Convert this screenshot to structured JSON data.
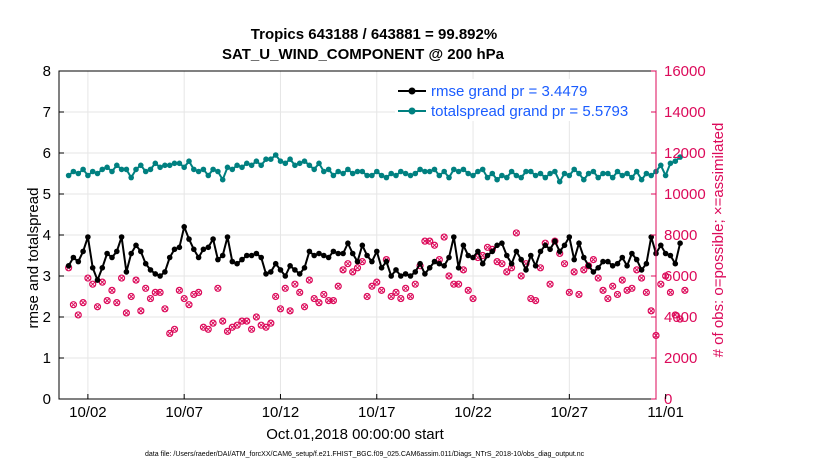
{
  "chart_data": {
    "type": "line",
    "title_line1": "Tropics 643188 / 643881 = 99.892%",
    "title_line2": "SAT_U_WIND_COMPONENT @ 200 hPa",
    "xlabel": "Oct.01,2018 00:00:00 start",
    "ylabel_left": "rmse and totalspread",
    "ylabel_right": "# of obs: o=possible; ×=assimilated",
    "footnote": "data file: /Users/raeder/DAI/ATM_forcXX/CAM6_setup/f.e21.FHIST_BGC.f09_025.CAM6assim.011/Diags_NTrS_2018-10/obs_diag_output.nc",
    "xlim": [
      0.5,
      31.5
    ],
    "ylim_left": [
      0,
      8
    ],
    "ylim_right": [
      0,
      16000
    ],
    "x_ticks": [
      2,
      7,
      12,
      17,
      22,
      27,
      32
    ],
    "x_tick_labels": [
      "10/02",
      "10/07",
      "10/12",
      "10/17",
      "10/22",
      "10/27",
      "11/01"
    ],
    "y_ticks_left": [
      "0",
      "1",
      "2",
      "3",
      "4",
      "5",
      "6",
      "7",
      "8"
    ],
    "y_ticks_right": [
      "0",
      "2000",
      "4000",
      "6000",
      "8000",
      "10000",
      "12000",
      "14000",
      "16000"
    ],
    "x_step_days": 0.25,
    "series": [
      {
        "name": "rmse grand pr = 3.4479",
        "color": "#000000",
        "axis": "left",
        "values": [
          3.25,
          3.45,
          3.35,
          3.6,
          3.95,
          3.2,
          2.9,
          3.2,
          3.55,
          3.45,
          3.6,
          3.95,
          3.1,
          3.55,
          3.75,
          3.6,
          3.3,
          3.15,
          3.05,
          3.0,
          3.1,
          3.45,
          3.65,
          3.7,
          4.2,
          3.9,
          3.65,
          3.45,
          3.65,
          3.7,
          3.9,
          3.4,
          3.5,
          3.95,
          3.35,
          3.3,
          3.4,
          3.5,
          3.5,
          3.55,
          3.45,
          3.05,
          3.1,
          3.3,
          3.15,
          3.0,
          3.25,
          3.15,
          3.05,
          3.2,
          3.6,
          3.5,
          3.55,
          3.5,
          3.45,
          3.6,
          3.55,
          3.55,
          3.8,
          3.55,
          3.35,
          3.75,
          3.5,
          3.35,
          3.6,
          3.2,
          3.35,
          3.0,
          3.15,
          3.0,
          3.05,
          3.0,
          3.1,
          3.3,
          3.05,
          3.2,
          3.35,
          3.3,
          3.25,
          3.45,
          3.95,
          3.2,
          3.75,
          3.5,
          3.45,
          3.6,
          3.3,
          3.5,
          3.6,
          3.75,
          3.8,
          3.5,
          3.3,
          3.6,
          3.4,
          3.15,
          3.5,
          3.25,
          3.6,
          3.75,
          3.65,
          3.85,
          3.6,
          3.75,
          3.95,
          3.4,
          3.8,
          3.45,
          3.25,
          3.1,
          3.2,
          3.35,
          3.35,
          3.25,
          3.3,
          3.45,
          3.25,
          3.55,
          3.4,
          3.15,
          3.3,
          3.95,
          3.55,
          3.75,
          3.55,
          3.5,
          3.3,
          3.8
        ],
        "note": "values listed at 0.25-day spacing starting at x=1"
      },
      {
        "name": "totalspread grand pr = 5.5793",
        "color": "#008080",
        "axis": "left",
        "values": [
          5.45,
          5.55,
          5.5,
          5.6,
          5.45,
          5.55,
          5.5,
          5.6,
          5.65,
          5.55,
          5.7,
          5.6,
          5.6,
          5.4,
          5.6,
          5.7,
          5.55,
          5.6,
          5.75,
          5.65,
          5.7,
          5.7,
          5.75,
          5.75,
          5.65,
          5.8,
          5.6,
          5.55,
          5.6,
          5.45,
          5.6,
          5.55,
          5.35,
          5.65,
          5.6,
          5.7,
          5.65,
          5.75,
          5.7,
          5.8,
          5.7,
          5.85,
          5.85,
          5.95,
          5.8,
          5.75,
          5.85,
          5.7,
          5.75,
          5.8,
          5.7,
          5.6,
          5.75,
          5.55,
          5.6,
          5.45,
          5.55,
          5.5,
          5.6,
          5.5,
          5.55,
          5.55,
          5.45,
          5.45,
          5.55,
          5.45,
          5.4,
          5.5,
          5.45,
          5.55,
          5.5,
          5.45,
          5.5,
          5.6,
          5.55,
          5.55,
          5.6,
          5.45,
          5.55,
          5.4,
          5.6,
          5.55,
          5.6,
          5.5,
          5.45,
          5.55,
          5.6,
          5.4,
          5.5,
          5.35,
          5.45,
          5.4,
          5.55,
          5.45,
          5.4,
          5.55,
          5.55,
          5.45,
          5.5,
          5.4,
          5.5,
          5.55,
          5.3,
          5.5,
          5.45,
          5.6,
          5.5,
          5.35,
          5.5,
          5.55,
          5.4,
          5.5,
          5.5,
          5.4,
          5.55,
          5.45,
          5.5,
          5.4,
          5.55,
          5.35,
          5.5,
          5.45,
          5.55,
          5.7,
          5.45,
          5.75,
          5.8,
          5.9
        ],
        "note": "values listed at 0.25-day spacing starting at x=1"
      }
    ],
    "obs_points": {
      "color": "#dc0a5a",
      "axis": "right",
      "x_start": 1.0,
      "values": [
        6400,
        4600,
        4100,
        4700,
        5900,
        5600,
        4500,
        5700,
        4800,
        5300,
        4700,
        5900,
        4200,
        5000,
        5800,
        4300,
        5400,
        4900,
        5200,
        5200,
        4400,
        3200,
        3400,
        5300,
        4900,
        4600,
        5100,
        5200,
        3500,
        3400,
        3700,
        5400,
        3800,
        3300,
        3500,
        3600,
        3800,
        3800,
        3400,
        4000,
        3600,
        3500,
        3700,
        5000,
        4400,
        5400,
        4300,
        5600,
        5200,
        4500,
        5800,
        4900,
        4700,
        5100,
        4800,
        4800,
        5500,
        6300,
        6600,
        6200,
        6400,
        6700,
        5000,
        5500,
        5700,
        5300,
        6800,
        5000,
        5200,
        4900,
        5400,
        5000,
        5600,
        6500,
        7700,
        7700,
        7500,
        6800,
        7900,
        6000,
        5600,
        5600,
        6300,
        5300,
        4900,
        6900,
        7000,
        7400,
        7300,
        6700,
        6600,
        6200,
        6400,
        8100,
        6000,
        6600,
        4900,
        4800,
        6400,
        7600,
        5600,
        7700,
        7100,
        6600,
        5200,
        6200,
        5100,
        6300,
        6500,
        6800,
        5900,
        5300,
        4900,
        5500,
        5100,
        5800,
        5300,
        5400,
        6300,
        5900,
        5200,
        4300,
        3100,
        5600,
        6000,
        5200,
        4100,
        3900,
        5300
      ]
    }
  }
}
